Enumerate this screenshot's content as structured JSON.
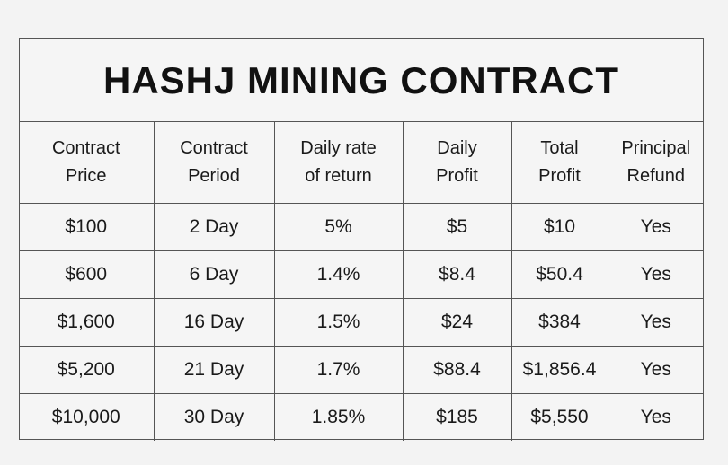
{
  "title": "HASHJ MINING CONTRACT",
  "table": {
    "headers": [
      [
        "Contract",
        "Price"
      ],
      [
        "Contract",
        "Period"
      ],
      [
        "Daily rate",
        "of return"
      ],
      [
        "Daily",
        "Profit"
      ],
      [
        "Total",
        "Profit"
      ],
      [
        "Principal",
        "Refund"
      ]
    ],
    "rows": [
      [
        "$100",
        "2 Day",
        "5%",
        "$5",
        "$10",
        "Yes"
      ],
      [
        "$600",
        "6 Day",
        "1.4%",
        "$8.4",
        "$50.4",
        "Yes"
      ],
      [
        "$1,600",
        "16 Day",
        "1.5%",
        "$24",
        "$384",
        "Yes"
      ],
      [
        "$5,200",
        "21 Day",
        "1.7%",
        "$88.4",
        "$1,856.4",
        "Yes"
      ],
      [
        "$10,000",
        "30 Day",
        "1.85%",
        "$185",
        "$5,550",
        "Yes"
      ]
    ]
  },
  "colors": {
    "background": "#f3f3f3",
    "border": "#555555",
    "text": "#111111"
  }
}
